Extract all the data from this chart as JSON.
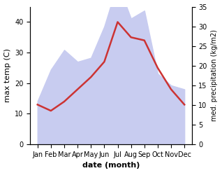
{
  "months": [
    "Jan",
    "Feb",
    "Mar",
    "Apr",
    "May",
    "Jun",
    "Jul",
    "Aug",
    "Sep",
    "Oct",
    "Nov",
    "Dec"
  ],
  "max_temp": [
    13,
    11,
    14,
    18,
    22,
    27,
    40,
    35,
    34,
    25,
    18,
    13
  ],
  "precipitation": [
    11,
    19,
    24,
    21,
    22,
    30,
    41,
    32,
    34,
    18,
    15,
    14
  ],
  "temp_color": "#cc3333",
  "precip_fill_color": "#c8ccf0",
  "temp_ylim": [
    0,
    45
  ],
  "precip_ylim": [
    0,
    35
  ],
  "temp_yticks": [
    0,
    10,
    20,
    30,
    40
  ],
  "precip_yticks": [
    0,
    5,
    10,
    15,
    20,
    25,
    30,
    35
  ],
  "xlabel": "date (month)",
  "ylabel_left": "max temp (C)",
  "ylabel_right": "med. precipitation (kg/m2)",
  "bg_color": "#ffffff",
  "line_width": 1.8
}
